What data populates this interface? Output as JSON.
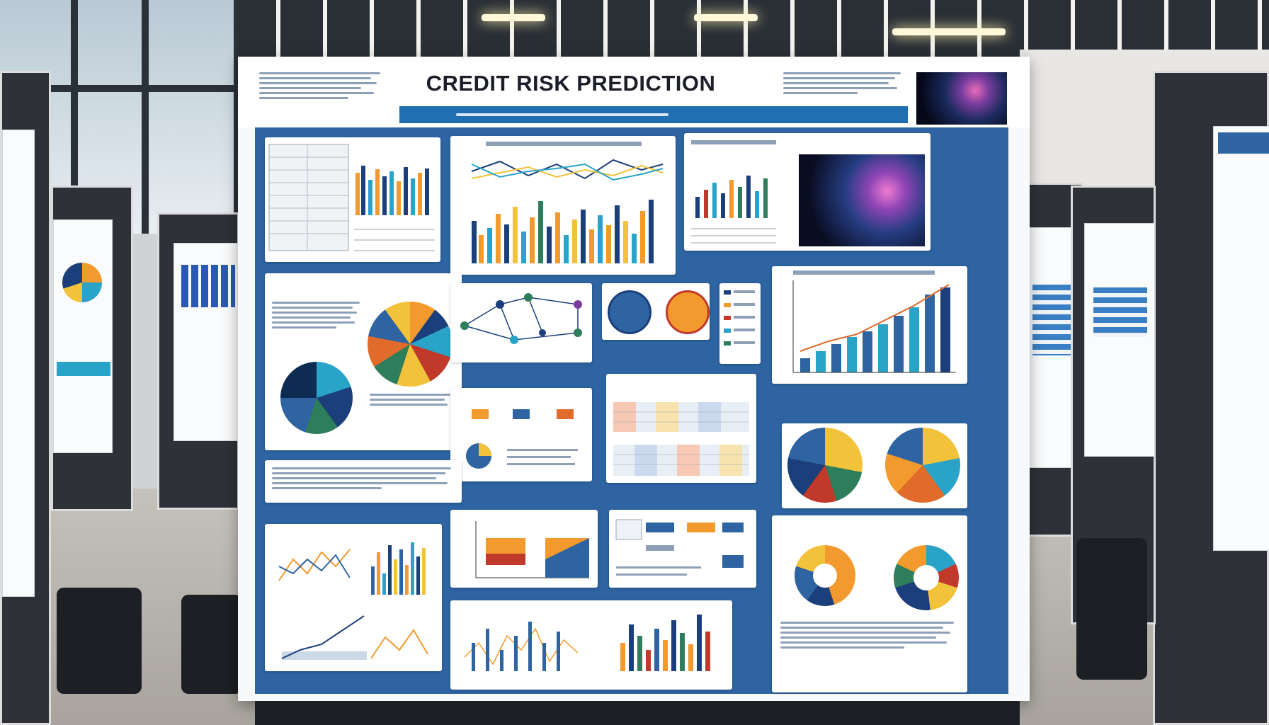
{
  "poster": {
    "title": "CREDIT RISK PREDICTION"
  },
  "colors": {
    "poster_blue": "#2d64a1",
    "accent_blue": "#1f6fb2",
    "chart_orange": "#f29a2e",
    "chart_navy": "#1b3f7a",
    "chart_green": "#2e7d5b",
    "chart_yellow": "#f2c23a",
    "chart_teal": "#2aa3c8"
  },
  "scene": {
    "description_icons": [
      "ceiling-light-icon",
      "chair-icon",
      "window-icon"
    ]
  }
}
